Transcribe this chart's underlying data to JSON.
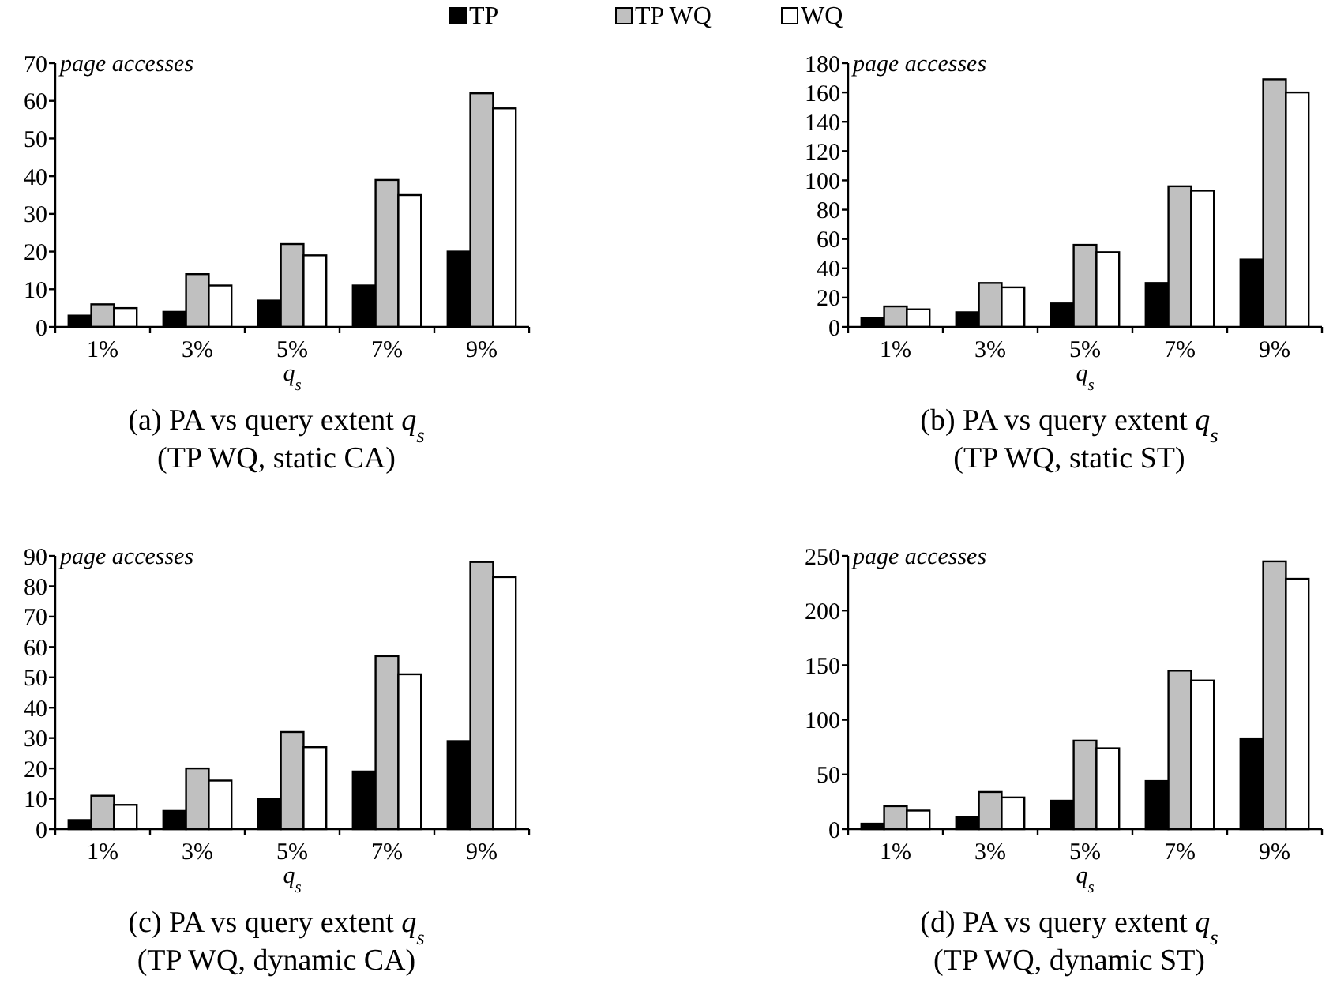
{
  "chart_data": [
    {
      "type": "bar",
      "title": "(a) PA vs query extent q$_{s}$",
      "subtitle": "(TP WQ, static CA)",
      "xlabel": "q$_{s}$",
      "ylabel": "page accesses",
      "categories": [
        "1%",
        "3%",
        "5%",
        "7%",
        "9%"
      ],
      "ylim": [
        0,
        70
      ],
      "yticks": [
        0,
        10,
        20,
        30,
        40,
        50,
        60,
        70
      ],
      "legend": "top",
      "grid": false,
      "series": [
        {
          "name": "TP",
          "color": "#000000",
          "values": [
            3,
            4,
            7,
            11,
            20
          ]
        },
        {
          "name": "TP WQ",
          "color": "#c0c0c0",
          "values": [
            6,
            14,
            22,
            39,
            62
          ]
        },
        {
          "name": "WQ",
          "color": "#ffffff",
          "values": [
            5,
            11,
            19,
            35,
            58
          ]
        }
      ]
    },
    {
      "type": "bar",
      "title": "(b) PA vs query extent q$_{s}$",
      "subtitle": "(TP WQ, static ST)",
      "xlabel": "q$_{s}$",
      "ylabel": "page accesses",
      "categories": [
        "1%",
        "3%",
        "5%",
        "7%",
        "9%"
      ],
      "ylim": [
        0,
        180
      ],
      "yticks": [
        0,
        20,
        40,
        60,
        80,
        100,
        120,
        140,
        160,
        180
      ],
      "grid": false,
      "series": [
        {
          "color": "#000000",
          "values": [
            6,
            10,
            16,
            30,
            46
          ]
        },
        {
          "color": "#c0c0c0",
          "values": [
            14,
            30,
            56,
            96,
            169
          ]
        },
        {
          "color": "#ffffff",
          "values": [
            12,
            27,
            51,
            93,
            160
          ]
        }
      ]
    },
    {
      "type": "bar",
      "title": "(c) PA vs query extent q$_{s}$",
      "subtitle": "(TP WQ, dynamic CA)",
      "xlabel": "q$_{s}$",
      "ylabel": "page accesses",
      "categories": [
        "1%",
        "3%",
        "5%",
        "7%",
        "9%"
      ],
      "ylim": [
        0,
        90
      ],
      "yticks": [
        0,
        10,
        20,
        30,
        40,
        50,
        60,
        70,
        80,
        90
      ],
      "grid": false,
      "series": [
        {
          "color": "#000000",
          "values": [
            3,
            6,
            10,
            19,
            29
          ]
        },
        {
          "color": "#c0c0c0",
          "values": [
            11,
            20,
            32,
            57,
            88
          ]
        },
        {
          "color": "#ffffff",
          "values": [
            8,
            16,
            27,
            51,
            83
          ]
        }
      ]
    },
    {
      "type": "bar",
      "title": "(d) PA vs query extent q$_{s}$",
      "subtitle": "(TP WQ, dynamic ST)",
      "xlabel": "q$_{s}$",
      "ylabel": "page accesses",
      "categories": [
        "1%",
        "3%",
        "5%",
        "7%",
        "9%"
      ],
      "ylim": [
        0,
        250
      ],
      "yticks": [
        0,
        50,
        100,
        150,
        200,
        250
      ],
      "grid": false,
      "series": [
        {
          "color": "#000000",
          "values": [
            5,
            11,
            26,
            44,
            83
          ]
        },
        {
          "color": "#c0c0c0",
          "values": [
            21,
            34,
            81,
            145,
            245
          ]
        },
        {
          "color": "#ffffff",
          "values": [
            17,
            29,
            74,
            136,
            229
          ]
        }
      ]
    }
  ]
}
